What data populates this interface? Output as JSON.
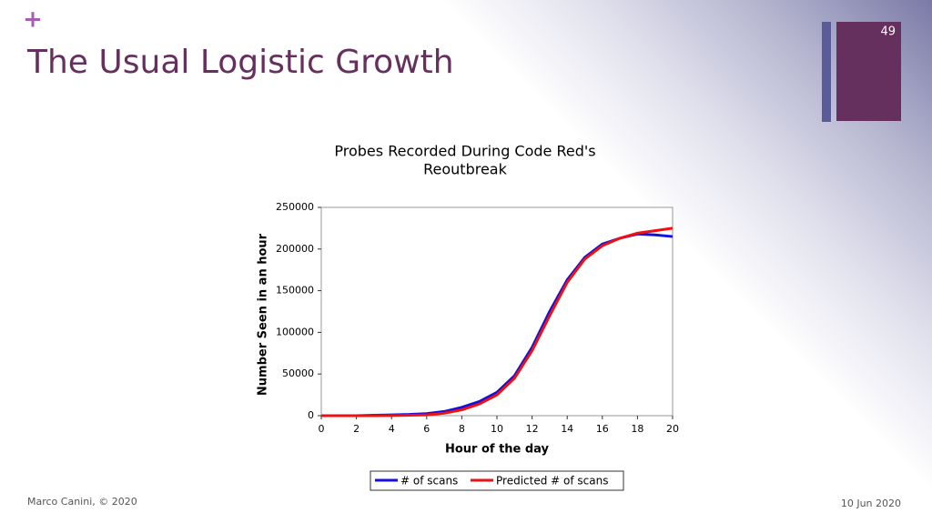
{
  "slide": {
    "mark": "+",
    "heading": "The Usual Logistic Growth",
    "page_number": "49",
    "footer_left": "Marco Canini, © 2020",
    "footer_right": "10 Jun 2020"
  },
  "chart_data": {
    "type": "line",
    "title": [
      "Probes Recorded During Code Red's",
      "Reoutbreak"
    ],
    "x_label": "Hour of the day",
    "y_label": "Number Seen in an hour",
    "x": [
      0,
      1,
      2,
      3,
      4,
      5,
      6,
      7,
      8,
      9,
      10,
      11,
      12,
      13,
      14,
      15,
      16,
      17,
      18,
      19,
      20
    ],
    "series": [
      {
        "name": "# of scans",
        "color": "#1010e0",
        "values": [
          0,
          0,
          0,
          500,
          1000,
          1500,
          2500,
          5000,
          10000,
          17000,
          28000,
          48000,
          82000,
          125000,
          163000,
          190000,
          206000,
          213000,
          218000,
          217000,
          215000
        ]
      },
      {
        "name": "Predicted # of scans",
        "color": "#ee1111",
        "values": [
          0,
          0,
          0,
          0,
          200,
          500,
          1000,
          3000,
          7000,
          14000,
          25000,
          45000,
          78000,
          120000,
          160000,
          188000,
          204000,
          213000,
          219000,
          222000,
          225000
        ]
      }
    ],
    "xlim": [
      0,
      20
    ],
    "xticks": [
      0,
      2,
      4,
      6,
      8,
      10,
      12,
      14,
      16,
      18,
      20
    ],
    "ylim": [
      0,
      250000
    ],
    "yticks": [
      0,
      50000,
      100000,
      150000,
      200000,
      250000
    ],
    "grid": false,
    "legend": "bottom"
  }
}
